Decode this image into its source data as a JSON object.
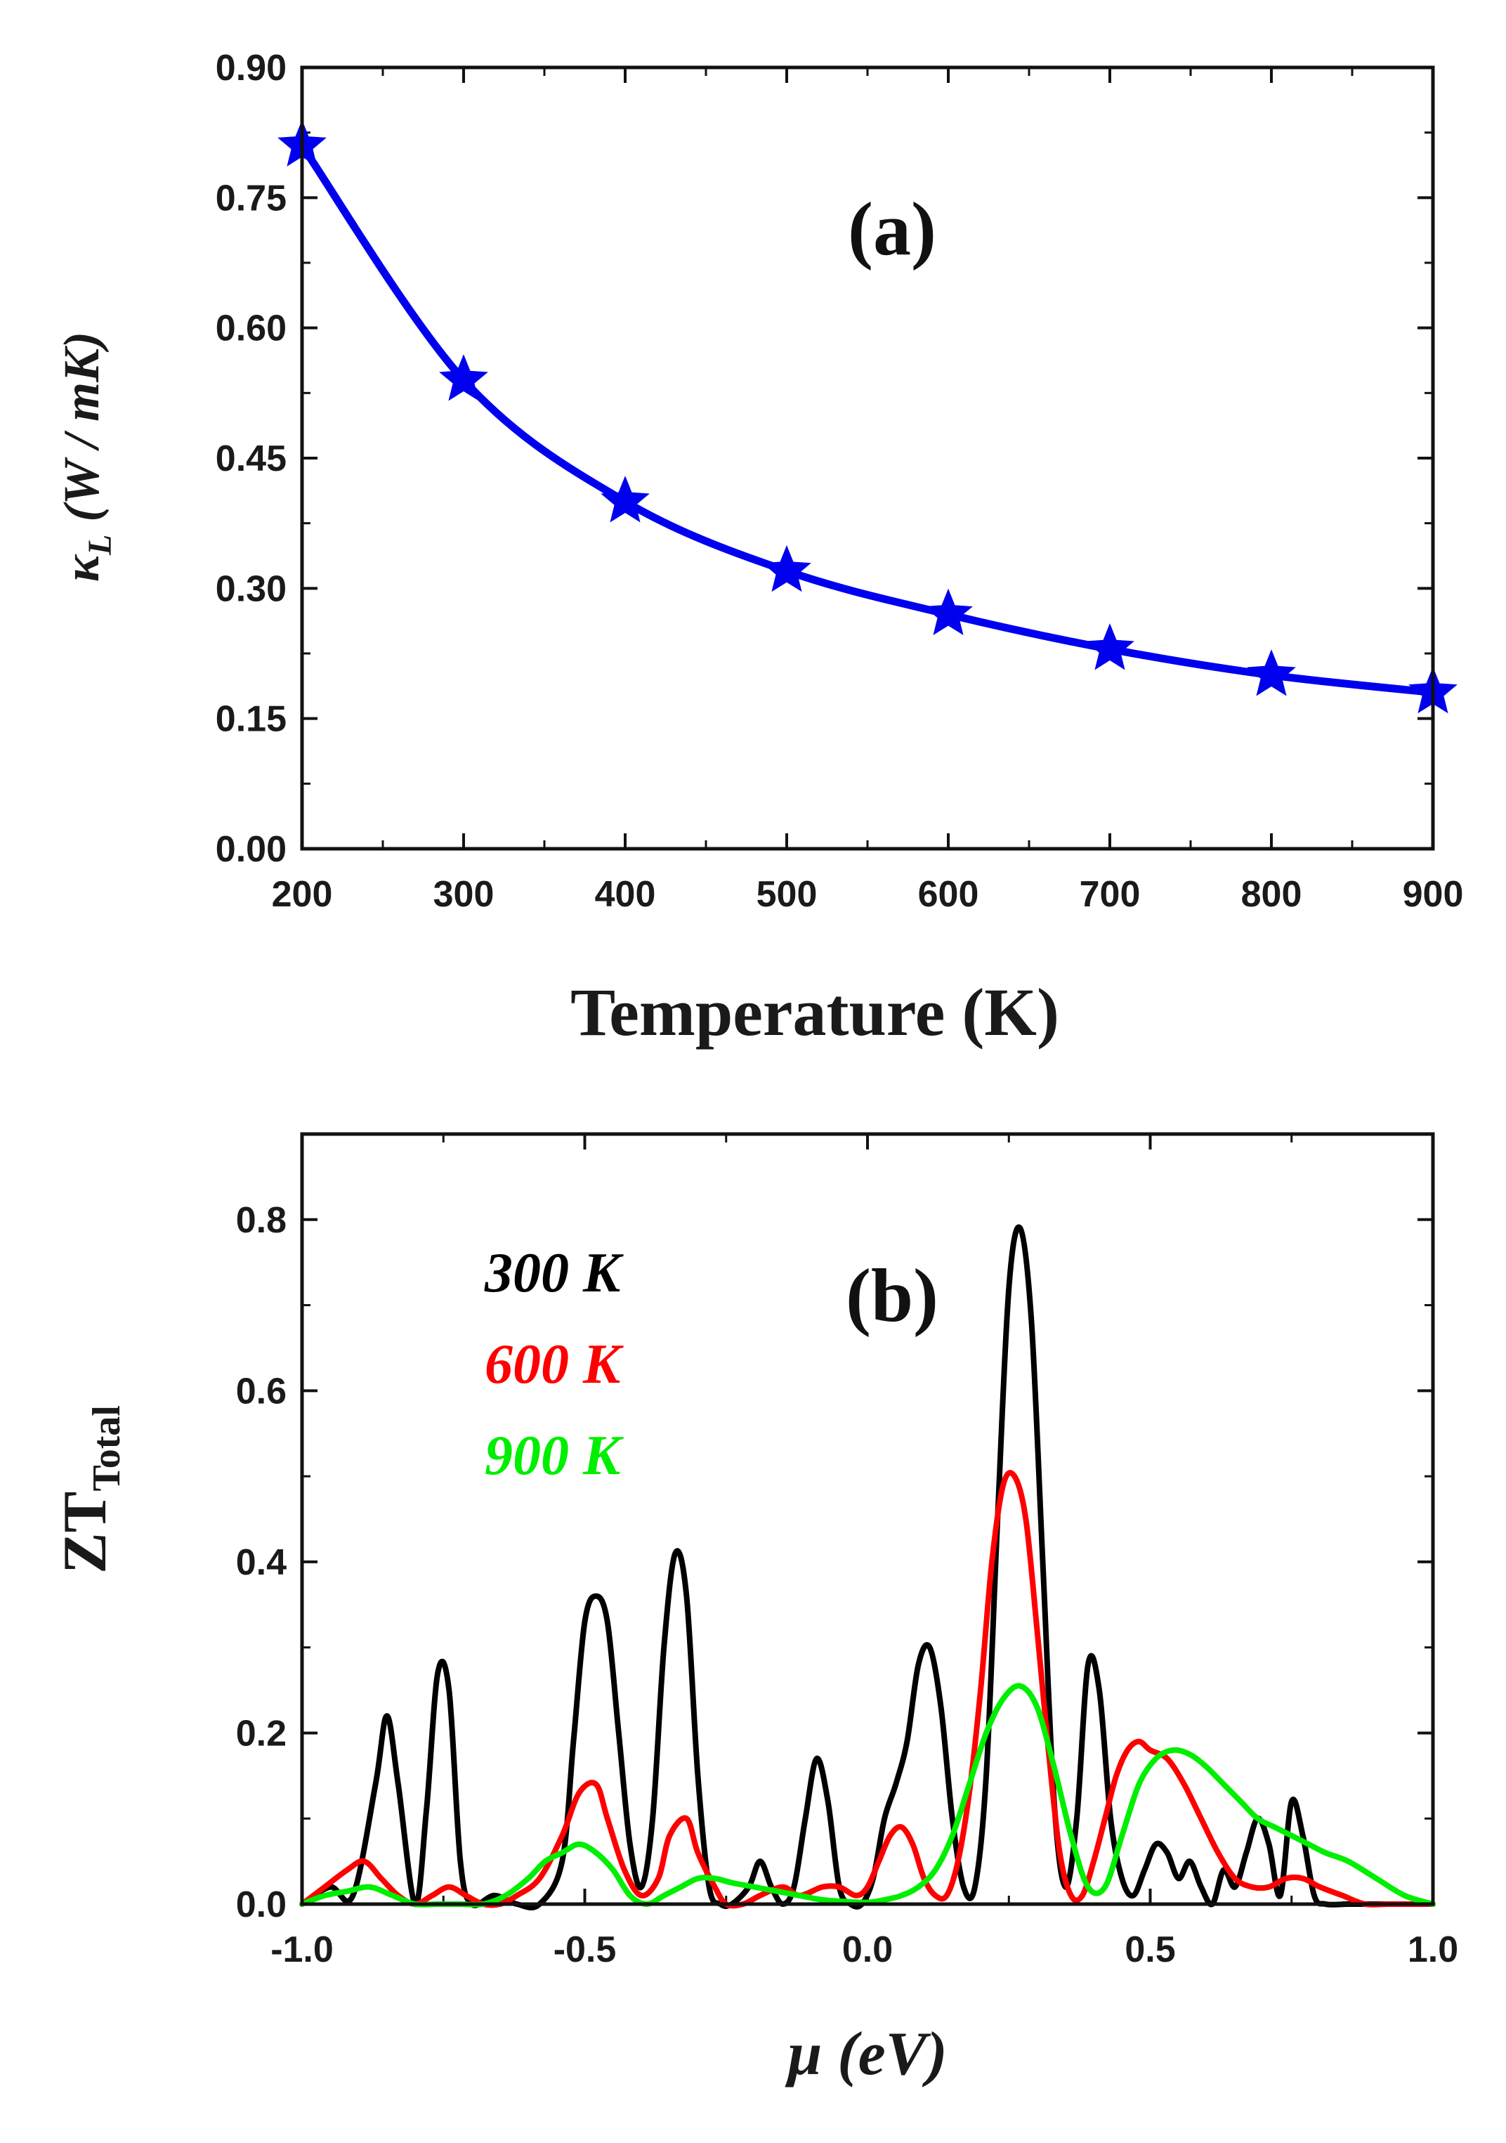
{
  "chart_data": [
    {
      "type": "line",
      "panel": "(a)",
      "xlabel": "Temperature (K)",
      "ylabel": {
        "symbol": "κ",
        "subscript": "L",
        "units": " (W / mK)"
      },
      "xlim": [
        200,
        900
      ],
      "ylim": [
        0,
        0.9
      ],
      "xticks": [
        "200",
        "300",
        "400",
        "500",
        "600",
        "700",
        "800",
        "900"
      ],
      "yticks": [
        "0.00",
        "0.15",
        "0.30",
        "0.45",
        "0.60",
        "0.75",
        "0.90"
      ],
      "xtick_values": [
        200,
        300,
        400,
        500,
        600,
        700,
        800,
        900
      ],
      "ytick_values": [
        0,
        0.15,
        0.3,
        0.45,
        0.6,
        0.75,
        0.9
      ],
      "series": [
        {
          "name": "kappa_L",
          "color": "#0000ee",
          "marker": "star",
          "x": [
            200,
            300,
            400,
            500,
            600,
            700,
            800,
            900
          ],
          "values": [
            0.81,
            0.54,
            0.4,
            0.32,
            0.27,
            0.23,
            0.2,
            0.18
          ]
        }
      ]
    },
    {
      "type": "line",
      "panel": "(b)",
      "xlabel": "μ (eV)",
      "ylabel": {
        "main": "ZT",
        "subscript": "Total"
      },
      "xlim": [
        -1.0,
        1.0
      ],
      "ylim": [
        0,
        0.9
      ],
      "xticks": [
        "-1.0",
        "-0.5",
        "0.0",
        "0.5",
        "1.0"
      ],
      "yticks": [
        "0.0",
        "0.2",
        "0.4",
        "0.6",
        "0.8"
      ],
      "xtick_values": [
        -1.0,
        -0.5,
        0.0,
        0.5,
        1.0
      ],
      "ytick_values": [
        0,
        0.2,
        0.4,
        0.6,
        0.8
      ],
      "series": [
        {
          "name": "300 K",
          "color": "#000000",
          "x": [
            -1.0,
            -0.95,
            -0.91,
            -0.87,
            -0.85,
            -0.83,
            -0.8,
            -0.78,
            -0.76,
            -0.74,
            -0.72,
            -0.7,
            -0.66,
            -0.62,
            -0.58,
            -0.54,
            -0.52,
            -0.5,
            -0.48,
            -0.46,
            -0.44,
            -0.42,
            -0.4,
            -0.38,
            -0.36,
            -0.34,
            -0.32,
            -0.3,
            -0.28,
            -0.26,
            -0.24,
            -0.21,
            -0.19,
            -0.17,
            -0.15,
            -0.13,
            -0.11,
            -0.09,
            -0.07,
            -0.05,
            -0.03,
            -0.01,
            0.01,
            0.03,
            0.05,
            0.07,
            0.09,
            0.11,
            0.13,
            0.15,
            0.17,
            0.19,
            0.21,
            0.23,
            0.25,
            0.27,
            0.29,
            0.31,
            0.33,
            0.35,
            0.37,
            0.39,
            0.41,
            0.43,
            0.45,
            0.47,
            0.49,
            0.51,
            0.53,
            0.55,
            0.57,
            0.59,
            0.61,
            0.63,
            0.65,
            0.67,
            0.69,
            0.71,
            0.73,
            0.75,
            0.77,
            0.79,
            0.81,
            0.85,
            0.9,
            1.0
          ],
          "values": [
            0.0,
            0.02,
            0.01,
            0.14,
            0.22,
            0.14,
            0.0,
            0.11,
            0.27,
            0.25,
            0.05,
            0.0,
            0.01,
            0.0,
            0.0,
            0.05,
            0.19,
            0.33,
            0.36,
            0.33,
            0.2,
            0.07,
            0.02,
            0.1,
            0.3,
            0.41,
            0.36,
            0.15,
            0.02,
            0.0,
            0.0,
            0.02,
            0.05,
            0.02,
            0.0,
            0.02,
            0.1,
            0.17,
            0.12,
            0.02,
            0.0,
            0.0,
            0.03,
            0.1,
            0.14,
            0.19,
            0.28,
            0.3,
            0.23,
            0.1,
            0.02,
            0.02,
            0.15,
            0.45,
            0.72,
            0.79,
            0.68,
            0.4,
            0.12,
            0.02,
            0.1,
            0.28,
            0.25,
            0.1,
            0.03,
            0.01,
            0.04,
            0.07,
            0.06,
            0.03,
            0.05,
            0.02,
            0.0,
            0.04,
            0.02,
            0.06,
            0.1,
            0.07,
            0.01,
            0.12,
            0.08,
            0.01,
            0.0,
            0.0,
            0.0,
            0.0
          ]
        },
        {
          "name": "600 K",
          "color": "#ff0000",
          "x": [
            -1.0,
            -0.96,
            -0.92,
            -0.89,
            -0.86,
            -0.83,
            -0.8,
            -0.77,
            -0.74,
            -0.71,
            -0.68,
            -0.65,
            -0.62,
            -0.58,
            -0.54,
            -0.51,
            -0.48,
            -0.46,
            -0.43,
            -0.4,
            -0.37,
            -0.35,
            -0.32,
            -0.3,
            -0.27,
            -0.25,
            -0.22,
            -0.19,
            -0.15,
            -0.12,
            -0.08,
            -0.05,
            -0.02,
            0.0,
            0.02,
            0.04,
            0.06,
            0.08,
            0.1,
            0.12,
            0.14,
            0.16,
            0.18,
            0.2,
            0.22,
            0.24,
            0.26,
            0.28,
            0.3,
            0.32,
            0.34,
            0.36,
            0.38,
            0.4,
            0.42,
            0.44,
            0.46,
            0.48,
            0.5,
            0.53,
            0.56,
            0.59,
            0.62,
            0.65,
            0.68,
            0.71,
            0.74,
            0.77,
            0.8,
            0.84,
            0.88,
            0.92,
            0.96,
            1.0
          ],
          "values": [
            0.0,
            0.02,
            0.04,
            0.05,
            0.03,
            0.01,
            0.0,
            0.01,
            0.02,
            0.01,
            0.0,
            0.0,
            0.01,
            0.03,
            0.08,
            0.13,
            0.14,
            0.1,
            0.04,
            0.01,
            0.03,
            0.08,
            0.1,
            0.06,
            0.02,
            0.0,
            0.0,
            0.01,
            0.02,
            0.01,
            0.02,
            0.02,
            0.01,
            0.02,
            0.05,
            0.08,
            0.09,
            0.07,
            0.03,
            0.01,
            0.01,
            0.05,
            0.13,
            0.25,
            0.4,
            0.49,
            0.5,
            0.45,
            0.32,
            0.18,
            0.06,
            0.01,
            0.01,
            0.05,
            0.1,
            0.15,
            0.18,
            0.19,
            0.18,
            0.17,
            0.14,
            0.1,
            0.06,
            0.03,
            0.02,
            0.02,
            0.03,
            0.03,
            0.02,
            0.01,
            0.0,
            0.0,
            0.0,
            0.0
          ]
        },
        {
          "name": "900 K",
          "color": "#00ee00",
          "x": [
            -1.0,
            -0.96,
            -0.92,
            -0.88,
            -0.84,
            -0.8,
            -0.76,
            -0.72,
            -0.68,
            -0.64,
            -0.6,
            -0.57,
            -0.54,
            -0.51,
            -0.48,
            -0.45,
            -0.42,
            -0.39,
            -0.36,
            -0.33,
            -0.3,
            -0.27,
            -0.24,
            -0.2,
            -0.16,
            -0.12,
            -0.08,
            -0.04,
            0.0,
            0.03,
            0.06,
            0.09,
            0.12,
            0.15,
            0.18,
            0.21,
            0.24,
            0.27,
            0.3,
            0.33,
            0.36,
            0.39,
            0.42,
            0.45,
            0.48,
            0.51,
            0.54,
            0.57,
            0.6,
            0.63,
            0.66,
            0.69,
            0.72,
            0.75,
            0.78,
            0.81,
            0.85,
            0.9,
            0.95,
            1.0
          ],
          "values": [
            0.0,
            0.01,
            0.015,
            0.02,
            0.01,
            0.0,
            0.0,
            0.0,
            0.0,
            0.01,
            0.03,
            0.05,
            0.06,
            0.07,
            0.06,
            0.04,
            0.01,
            0.0,
            0.01,
            0.02,
            0.03,
            0.03,
            0.025,
            0.02,
            0.015,
            0.01,
            0.005,
            0.003,
            0.002,
            0.005,
            0.01,
            0.02,
            0.04,
            0.08,
            0.14,
            0.2,
            0.24,
            0.255,
            0.23,
            0.16,
            0.08,
            0.02,
            0.02,
            0.08,
            0.14,
            0.17,
            0.18,
            0.175,
            0.16,
            0.14,
            0.12,
            0.1,
            0.09,
            0.08,
            0.07,
            0.06,
            0.05,
            0.03,
            0.01,
            0.0
          ]
        }
      ]
    }
  ]
}
